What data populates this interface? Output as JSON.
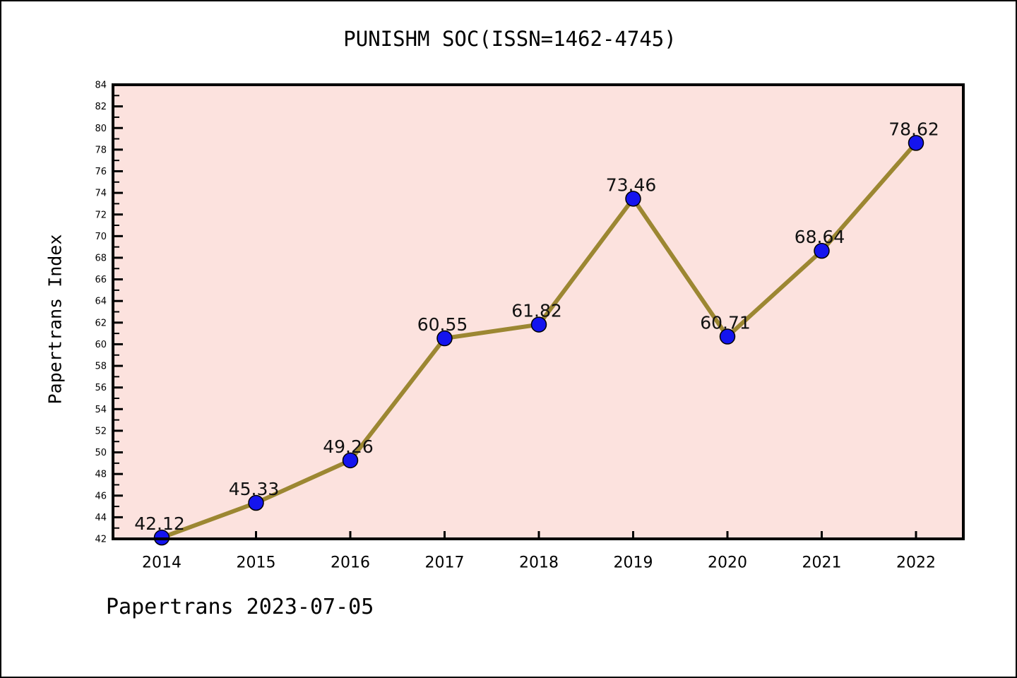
{
  "chart_data": {
    "type": "line",
    "title": "PUNISHM SOC(ISSN=1462-4745)",
    "ylabel": "Papertrans Index",
    "xlabel": "",
    "categories": [
      "2014",
      "2015",
      "2016",
      "2017",
      "2018",
      "2019",
      "2020",
      "2021",
      "2022"
    ],
    "values": [
      42.12,
      45.33,
      49.26,
      60.55,
      61.82,
      73.46,
      60.71,
      68.64,
      78.62
    ],
    "point_labels": [
      "42.12",
      "45.33",
      "49.26",
      "60.55",
      "61.82",
      "73.46",
      "60.71",
      "68.64",
      "78.62"
    ],
    "ylim": [
      42,
      84
    ],
    "ytick_step": 2,
    "yminor_step": 1,
    "grid": false,
    "legend_position": "none",
    "annotation": "Papertrans 2023-07-05",
    "colors": {
      "line": "#9c8732",
      "marker": "#1414ee",
      "marker_edge": "#000000",
      "plot_bg": "#fce2de",
      "figure_bg": "#ffffff",
      "axis": "#000000",
      "text": "#000000"
    }
  }
}
